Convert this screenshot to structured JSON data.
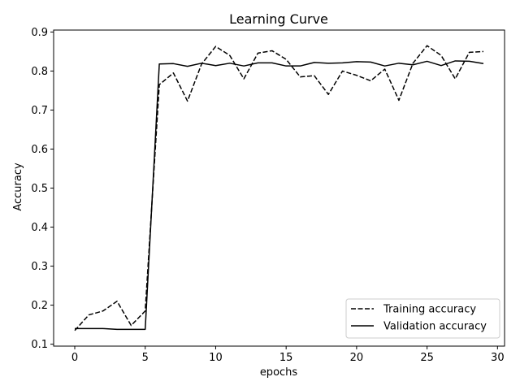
{
  "chart_data": {
    "type": "line",
    "title": "Learning Curve",
    "xlabel": "epochs",
    "ylabel": "Accuracy",
    "xlim": [
      -1.5,
      30.5
    ],
    "ylim": [
      0.095,
      0.905
    ],
    "xticks": [
      0,
      5,
      10,
      15,
      20,
      25,
      30
    ],
    "yticks": [
      0.1,
      0.2,
      0.3,
      0.4,
      0.5,
      0.6,
      0.7,
      0.8,
      0.9
    ],
    "grid": false,
    "legend_position": "lower-right",
    "x": [
      0,
      1,
      2,
      3,
      4,
      5,
      6,
      7,
      8,
      9,
      10,
      11,
      12,
      13,
      14,
      15,
      16,
      17,
      18,
      19,
      20,
      21,
      22,
      23,
      24,
      25,
      26,
      27,
      28,
      29
    ],
    "series": [
      {
        "name": "Training accuracy",
        "style": "dashed",
        "color": "#000000",
        "values": [
          0.135,
          0.175,
          0.185,
          0.21,
          0.148,
          0.185,
          0.765,
          0.795,
          0.723,
          0.818,
          0.863,
          0.84,
          0.78,
          0.846,
          0.852,
          0.83,
          0.785,
          0.788,
          0.74,
          0.8,
          0.789,
          0.775,
          0.805,
          0.725,
          0.82,
          0.865,
          0.84,
          0.78,
          0.848,
          0.85
        ]
      },
      {
        "name": "Validation accuracy",
        "style": "solid",
        "color": "#000000",
        "values": [
          0.14,
          0.14,
          0.14,
          0.138,
          0.138,
          0.138,
          0.818,
          0.819,
          0.812,
          0.82,
          0.814,
          0.82,
          0.813,
          0.821,
          0.821,
          0.813,
          0.813,
          0.822,
          0.82,
          0.821,
          0.824,
          0.823,
          0.813,
          0.82,
          0.816,
          0.825,
          0.814,
          0.826,
          0.825,
          0.819
        ]
      }
    ]
  }
}
